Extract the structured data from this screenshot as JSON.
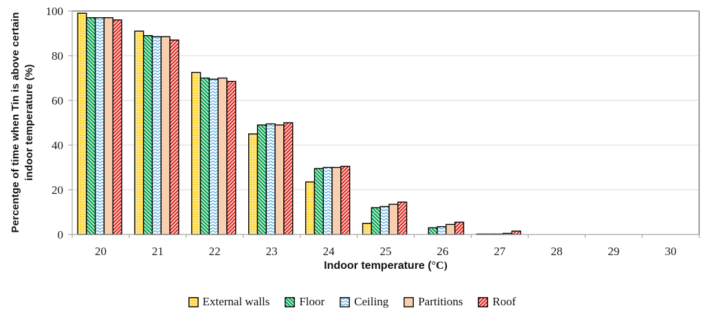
{
  "chart_data": {
    "type": "bar",
    "title": "",
    "xlabel_prefix": "Indoor temperature (",
    "xlabel_unit": "°C)",
    "xlabel": "Indoor temperature (°C)",
    "ylabel_lines": [
      "Percentge of time when Tin is above certain",
      "indoor temperature (%)"
    ],
    "ylabel": "Percentge of time when Tin is above certain indoor temperature (%)",
    "categories": [
      "20",
      "21",
      "22",
      "23",
      "24",
      "25",
      "26",
      "27",
      "28",
      "29",
      "30"
    ],
    "yticks": [
      0,
      20,
      40,
      60,
      80,
      100
    ],
    "ylim": [
      0,
      100
    ],
    "grid": true,
    "legend_position": "bottom",
    "series": [
      {
        "name": "External walls",
        "pattern": "yellow-grid",
        "color": "#FFD21E",
        "values": [
          99,
          91,
          72.5,
          45,
          23.5,
          5,
          0,
          0.2,
          0,
          0,
          0
        ]
      },
      {
        "name": "Floor",
        "pattern": "green-diagonal-down",
        "color": "#00A44F",
        "values": [
          97,
          89,
          70,
          49,
          29.5,
          12,
          3,
          0.2,
          0,
          0,
          0
        ]
      },
      {
        "name": "Ceiling",
        "pattern": "blue-wave",
        "color": "#4BA6DE",
        "values": [
          97,
          88.5,
          69.5,
          49.5,
          30,
          12.5,
          3.5,
          0.2,
          0,
          0,
          0
        ]
      },
      {
        "name": "Partitions",
        "pattern": "peach-dots",
        "color": "#F7CDAB",
        "values": [
          97,
          88.5,
          70,
          49,
          30,
          13.5,
          4.5,
          0.5,
          0,
          0,
          0
        ]
      },
      {
        "name": "Roof",
        "pattern": "red-diagonal-up",
        "color": "#E02A20",
        "values": [
          96,
          87,
          68.5,
          50,
          30.5,
          14.5,
          5.5,
          1.5,
          0,
          0,
          0
        ]
      }
    ],
    "colors": {
      "gridline": "#D9D9D9",
      "plot_border": "#7F7F7F",
      "axis": "#A6A6A6",
      "bar_outline": "#000000",
      "text": "#1a1a1a"
    }
  }
}
